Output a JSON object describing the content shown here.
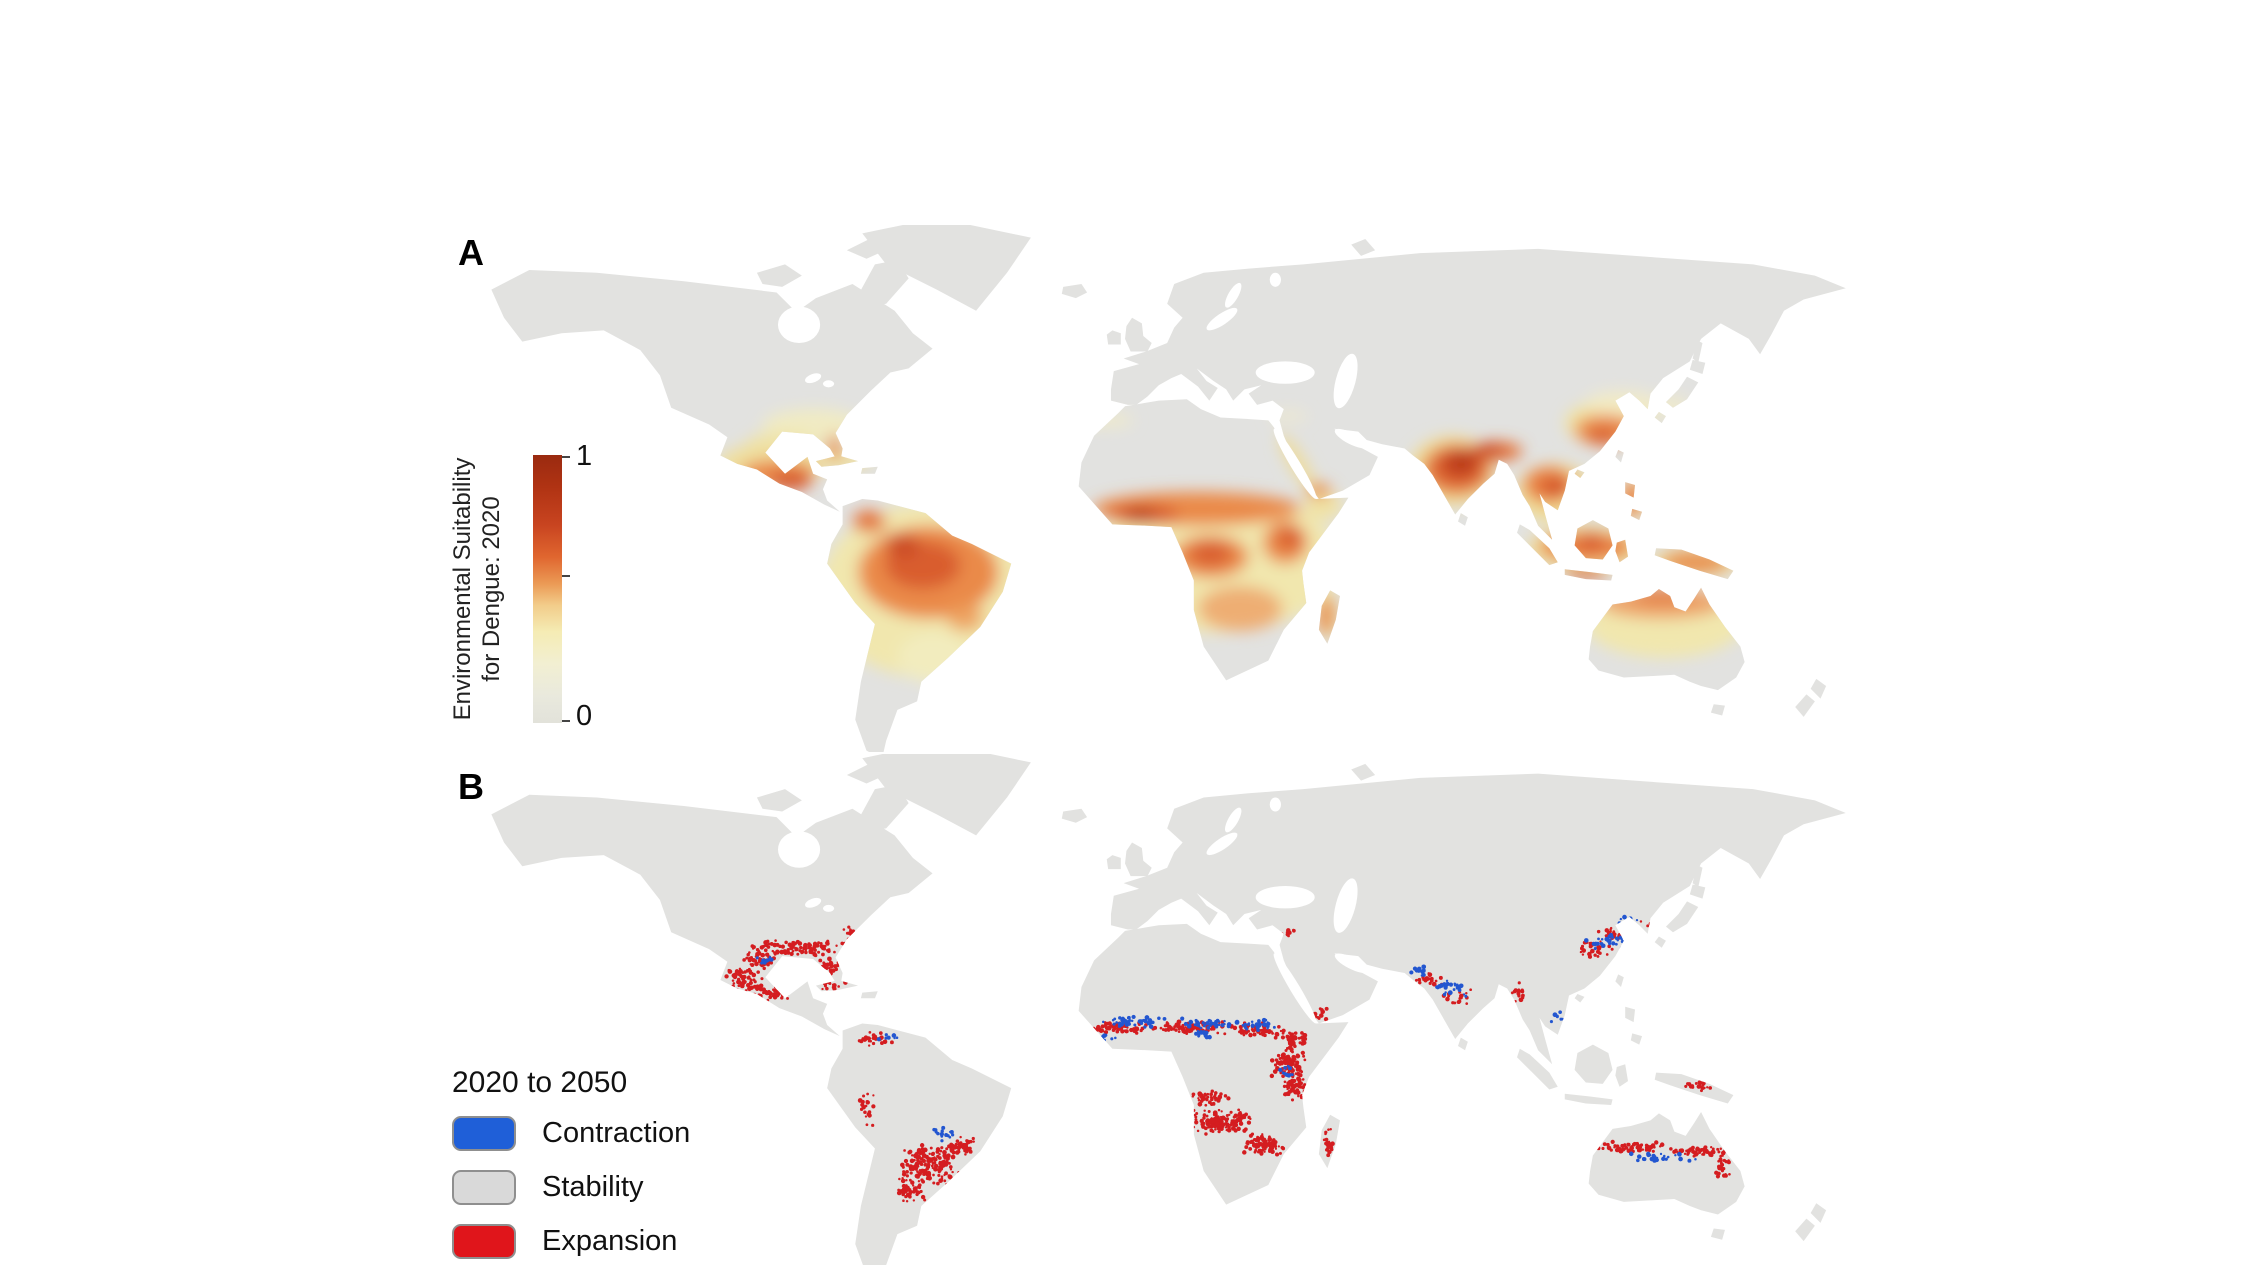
{
  "figure": {
    "panelA": {
      "label": "A",
      "colorbar": {
        "title_lines": [
          "Environmental Suitability",
          "for Dengue: 2020"
        ],
        "max_label": "1",
        "min_label": "0",
        "stops": [
          "#9a2a10 0%",
          "#b03313 12%",
          "#c84420 26%",
          "#e0662f 38%",
          "#eb9a55 48%",
          "#f2cc8a 56%",
          "#f5ecb4 66%",
          "#f2efd2 78%",
          "#e9e9dd 90%",
          "#e2e2da 100%"
        ]
      }
    },
    "panelB": {
      "label": "B",
      "legend": {
        "title": "2020 to 2050",
        "items": [
          {
            "id": "contraction",
            "label": "Contraction",
            "color": "#1f5fd8"
          },
          {
            "id": "stability",
            "label": "Stability",
            "color": "#d9d9d9"
          },
          {
            "id": "expansion",
            "label": "Expansion",
            "color": "#e0151b"
          }
        ]
      }
    },
    "map": {
      "land_color": "#e2e2e0",
      "ocean_color": "#ffffff",
      "expansion_dot_color": "#d41d20",
      "contraction_dot_color": "#2356d0"
    }
  }
}
